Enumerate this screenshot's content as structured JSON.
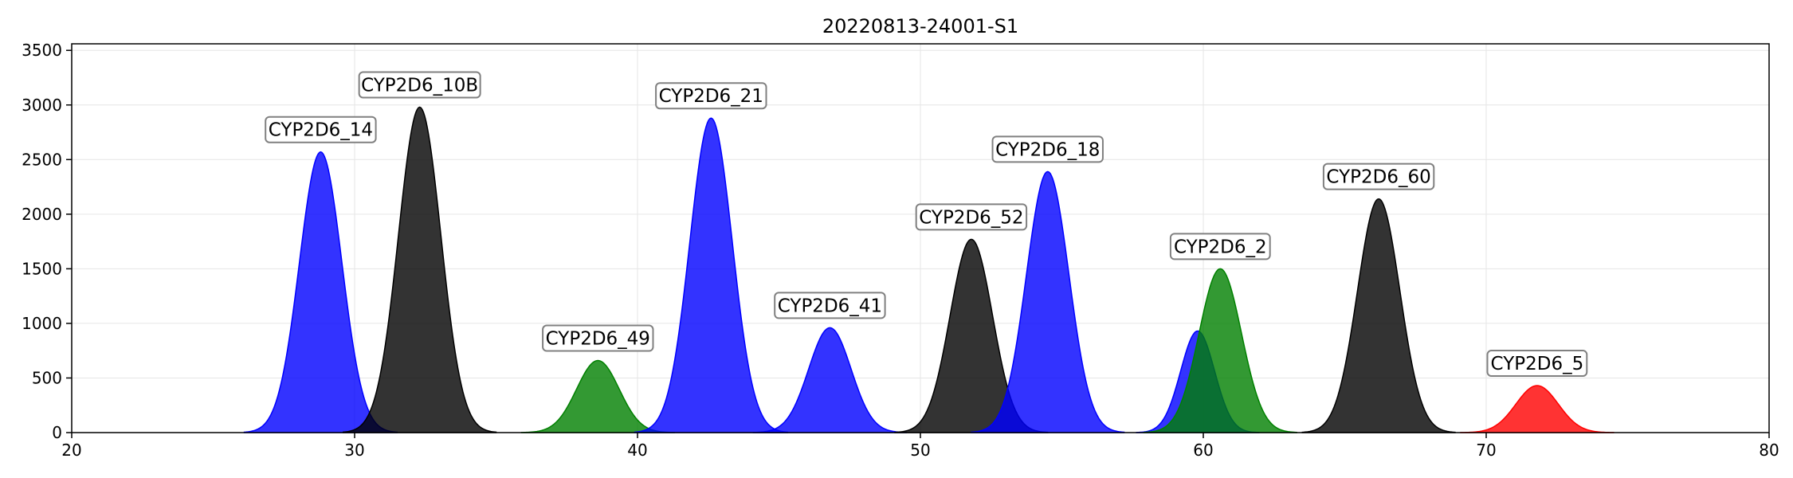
{
  "chart_data": {
    "type": "area",
    "title": "20220813-24001-S1",
    "xlabel": "",
    "ylabel": "",
    "xlim": [
      20,
      80
    ],
    "ylim": [
      0,
      3560
    ],
    "xticks": [
      20,
      30,
      40,
      50,
      60,
      70,
      80
    ],
    "yticks": [
      0,
      500,
      1000,
      1500,
      2000,
      2500,
      3000,
      3500
    ],
    "grid": true,
    "colors": {
      "blue": "#0000ff",
      "black": "#000000",
      "green": "#008000",
      "red": "#ff0000"
    },
    "series": [
      {
        "label": "CYP2D6_14",
        "center": 28.8,
        "height": 2570,
        "sigma": 0.75,
        "color": "blue"
      },
      {
        "label": "CYP2D6_10B",
        "center": 32.3,
        "height": 2980,
        "sigma": 0.75,
        "color": "black"
      },
      {
        "label": "CYP2D6_49",
        "center": 38.6,
        "height": 660,
        "sigma": 0.75,
        "color": "green"
      },
      {
        "label": "CYP2D6_21",
        "center": 42.6,
        "height": 2880,
        "sigma": 0.75,
        "color": "blue"
      },
      {
        "label": "CYP2D6_41",
        "center": 46.8,
        "height": 960,
        "sigma": 0.75,
        "color": "blue"
      },
      {
        "label": "CYP2D6_52",
        "center": 51.8,
        "height": 1770,
        "sigma": 0.75,
        "color": "black"
      },
      {
        "label": "CYP2D6_18",
        "center": 54.5,
        "height": 2390,
        "sigma": 0.75,
        "color": "blue"
      },
      {
        "label": null,
        "center": 59.8,
        "height": 930,
        "sigma": 0.6,
        "color": "blue"
      },
      {
        "label": "CYP2D6_2",
        "center": 60.6,
        "height": 1500,
        "sigma": 0.75,
        "color": "green"
      },
      {
        "label": "CYP2D6_60",
        "center": 66.2,
        "height": 2140,
        "sigma": 0.75,
        "color": "black"
      },
      {
        "label": "CYP2D6_5",
        "center": 71.8,
        "height": 430,
        "sigma": 0.75,
        "color": "red"
      }
    ]
  }
}
